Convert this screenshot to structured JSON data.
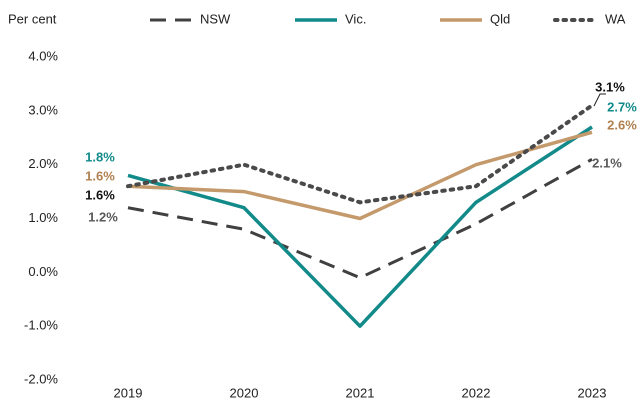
{
  "chart_data": {
    "type": "line",
    "y_axis_label": "Per cent",
    "categories": [
      "2019",
      "2020",
      "2021",
      "2022",
      "2023"
    ],
    "ylim": [
      -2,
      4
    ],
    "yticks": [
      {
        "value": -2,
        "label": "-2.0%"
      },
      {
        "value": -1,
        "label": "-1.0%"
      },
      {
        "value": 0,
        "label": "0.0%"
      },
      {
        "value": 1,
        "label": "1.0%"
      },
      {
        "value": 2,
        "label": "2.0%"
      },
      {
        "value": 3,
        "label": "3.0%"
      },
      {
        "value": 4,
        "label": "4.0%"
      }
    ],
    "grid": false,
    "legend": "top",
    "series": [
      {
        "name": "NSW",
        "color": "#404040",
        "line_style": "dashed",
        "label_color": "#595959",
        "values": [
          1.2,
          0.8,
          -0.1,
          0.9,
          2.1
        ],
        "value_labels": [
          "1.2%",
          null,
          null,
          null,
          "2.1%"
        ]
      },
      {
        "name": "Vic.",
        "color": "#138a8a",
        "line_style": "solid",
        "label_color": "#138a8a",
        "values": [
          1.8,
          1.2,
          -1.0,
          1.3,
          2.7
        ],
        "value_labels": [
          "1.8%",
          null,
          null,
          null,
          "2.7%"
        ]
      },
      {
        "name": "Qld",
        "color": "#c49a6c",
        "line_style": "solid",
        "label_color": "#b08050",
        "values": [
          1.6,
          1.5,
          1.0,
          2.0,
          2.6
        ],
        "value_labels": [
          "1.6%",
          null,
          null,
          null,
          "2.6%"
        ]
      },
      {
        "name": "WA",
        "color": "#4a4a4a",
        "line_style": "dotted",
        "label_color": "#111111",
        "values": [
          1.6,
          2.0,
          1.3,
          1.6,
          3.1
        ],
        "value_labels": [
          "1.6%",
          null,
          null,
          null,
          "3.1%"
        ]
      }
    ]
  }
}
